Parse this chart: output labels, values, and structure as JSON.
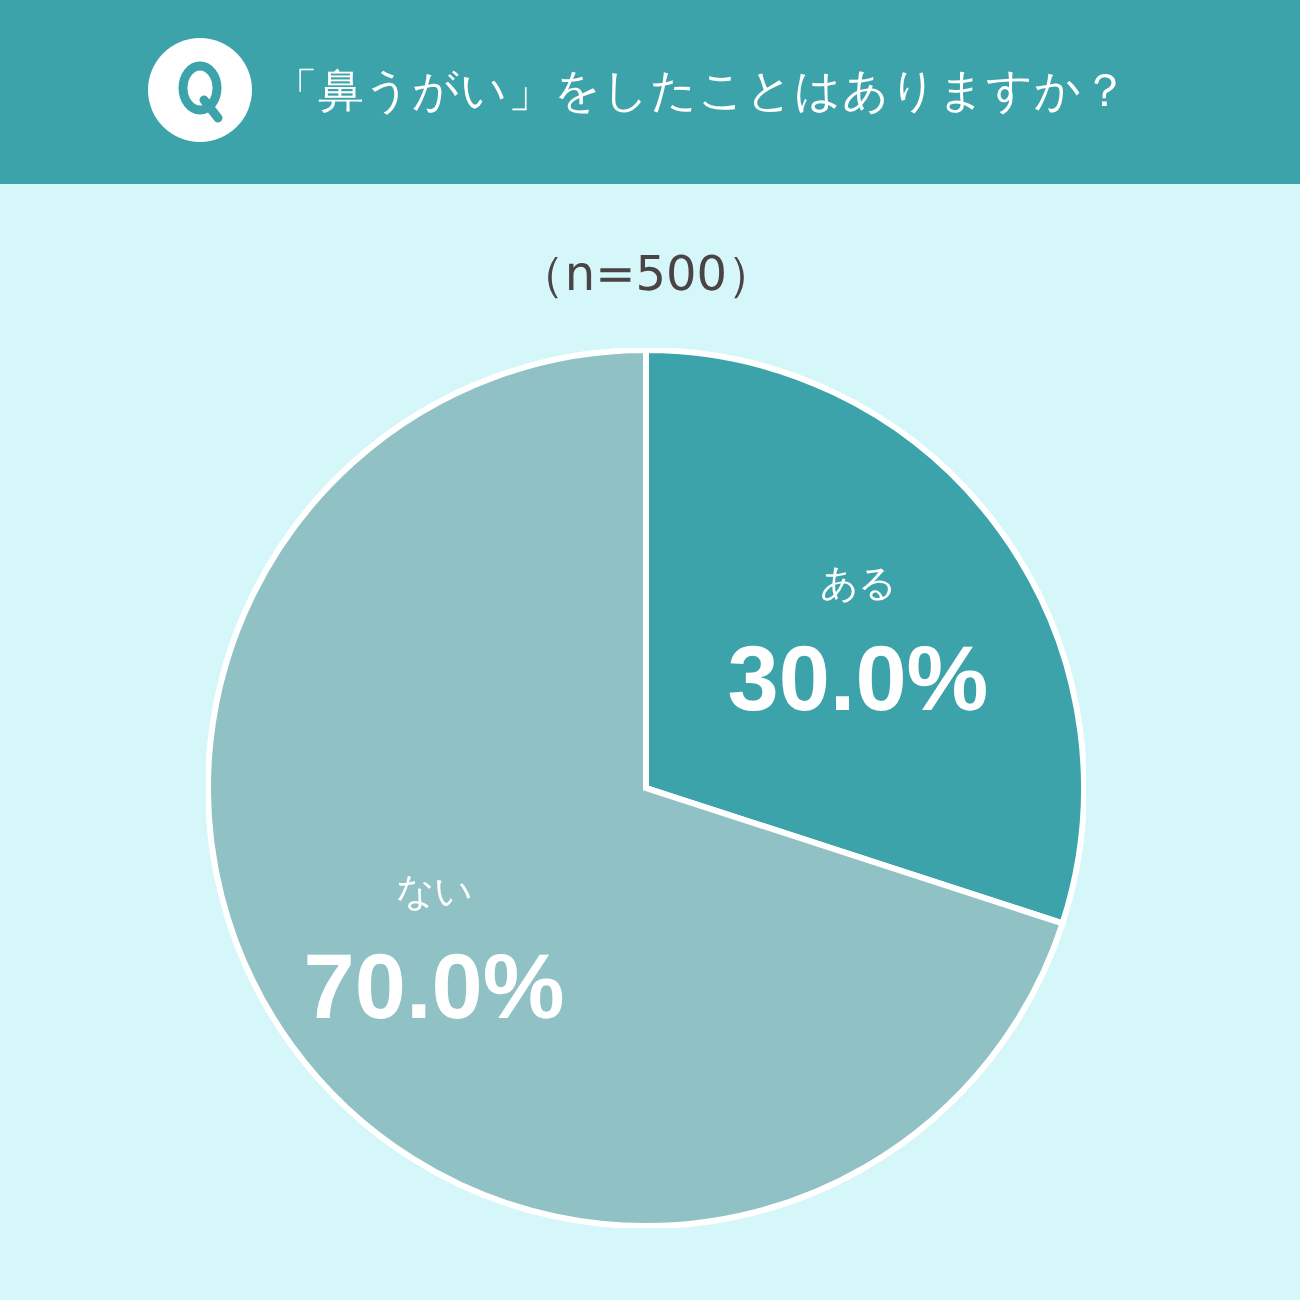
{
  "chart_data": {
    "type": "pie",
    "title": "「鼻うがい」をしたことはありますか？",
    "subtitle": "（n=500）",
    "categories": [
      "ある",
      "ない"
    ],
    "values": [
      30.0,
      70.0
    ],
    "colors": [
      "#3ca3aa",
      "#90c1c4"
    ],
    "value_labels": [
      "30.0%",
      "70.0%"
    ]
  }
}
